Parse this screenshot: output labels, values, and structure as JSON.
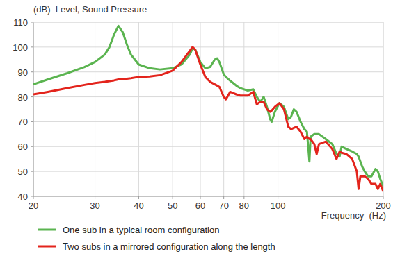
{
  "chart_data": {
    "type": "line",
    "title": "(dB)  Level, Sound Pressure",
    "x_label": "Frequency  (Hz)",
    "log": "x",
    "grid": true,
    "legend": "bottom",
    "xlim": [
      20,
      200
    ],
    "ylim": [
      40,
      110
    ],
    "xticks": [
      20,
      30,
      40,
      50,
      60,
      70,
      80,
      100,
      200
    ],
    "yticks": [
      40,
      50,
      60,
      70,
      80,
      90,
      100,
      110
    ],
    "x": [
      20,
      22,
      25,
      28,
      30,
      32,
      33,
      34,
      35,
      36,
      37,
      38,
      40,
      43,
      46,
      50,
      53,
      56,
      57,
      58,
      60,
      62,
      64,
      66,
      67,
      68,
      70,
      71,
      73,
      76,
      78,
      82,
      85,
      87,
      89,
      91,
      93,
      95,
      96,
      98,
      101,
      104,
      107,
      109,
      111,
      113,
      116,
      119,
      121,
      122,
      123,
      124,
      127,
      129,
      131,
      137,
      143,
      147,
      150,
      152,
      157,
      163,
      168,
      170,
      172,
      174,
      177,
      181,
      185,
      190,
      193,
      196,
      200
    ],
    "series": [
      {
        "name": "One sub in a typical room configuration",
        "color": "#5bb450",
        "values": [
          85,
          87,
          89.5,
          92,
          94,
          97,
          100,
          105,
          108.5,
          106,
          101,
          97,
          93,
          91.5,
          91,
          91.5,
          93,
          97,
          99.5,
          99,
          94,
          91.5,
          92,
          95,
          95.5,
          94,
          89,
          88,
          86.5,
          84.5,
          83.5,
          82.5,
          83,
          80,
          78,
          80,
          76,
          71,
          70,
          74,
          77.5,
          76,
          71,
          72,
          75,
          74,
          70,
          67,
          66,
          60,
          54,
          64,
          65,
          65,
          65,
          63,
          61,
          57,
          56,
          60,
          59,
          58,
          57,
          56,
          54,
          52,
          50,
          48,
          48,
          51,
          50,
          47,
          44
        ]
      },
      {
        "name": "Two subs in a mirrored configuration along the length",
        "color": "#e3241c",
        "values": [
          81,
          82,
          83.5,
          84.8,
          85.5,
          86,
          86.3,
          86.6,
          87,
          87.1,
          87.3,
          87.5,
          88,
          88.2,
          88.7,
          90.5,
          94,
          98.5,
          100,
          99,
          93,
          88,
          86,
          85,
          84.5,
          84,
          80,
          79,
          82,
          81,
          80.5,
          80.5,
          82,
          77,
          78,
          78,
          75,
          74,
          74.5,
          76,
          77.5,
          75,
          68,
          67,
          67.5,
          68,
          66,
          63,
          64,
          63.5,
          63,
          63,
          61,
          57,
          61,
          62,
          59,
          55,
          58,
          57.5,
          57,
          55,
          50,
          43,
          48,
          48,
          48,
          47,
          45,
          45,
          43,
          45,
          42
        ]
      }
    ]
  }
}
